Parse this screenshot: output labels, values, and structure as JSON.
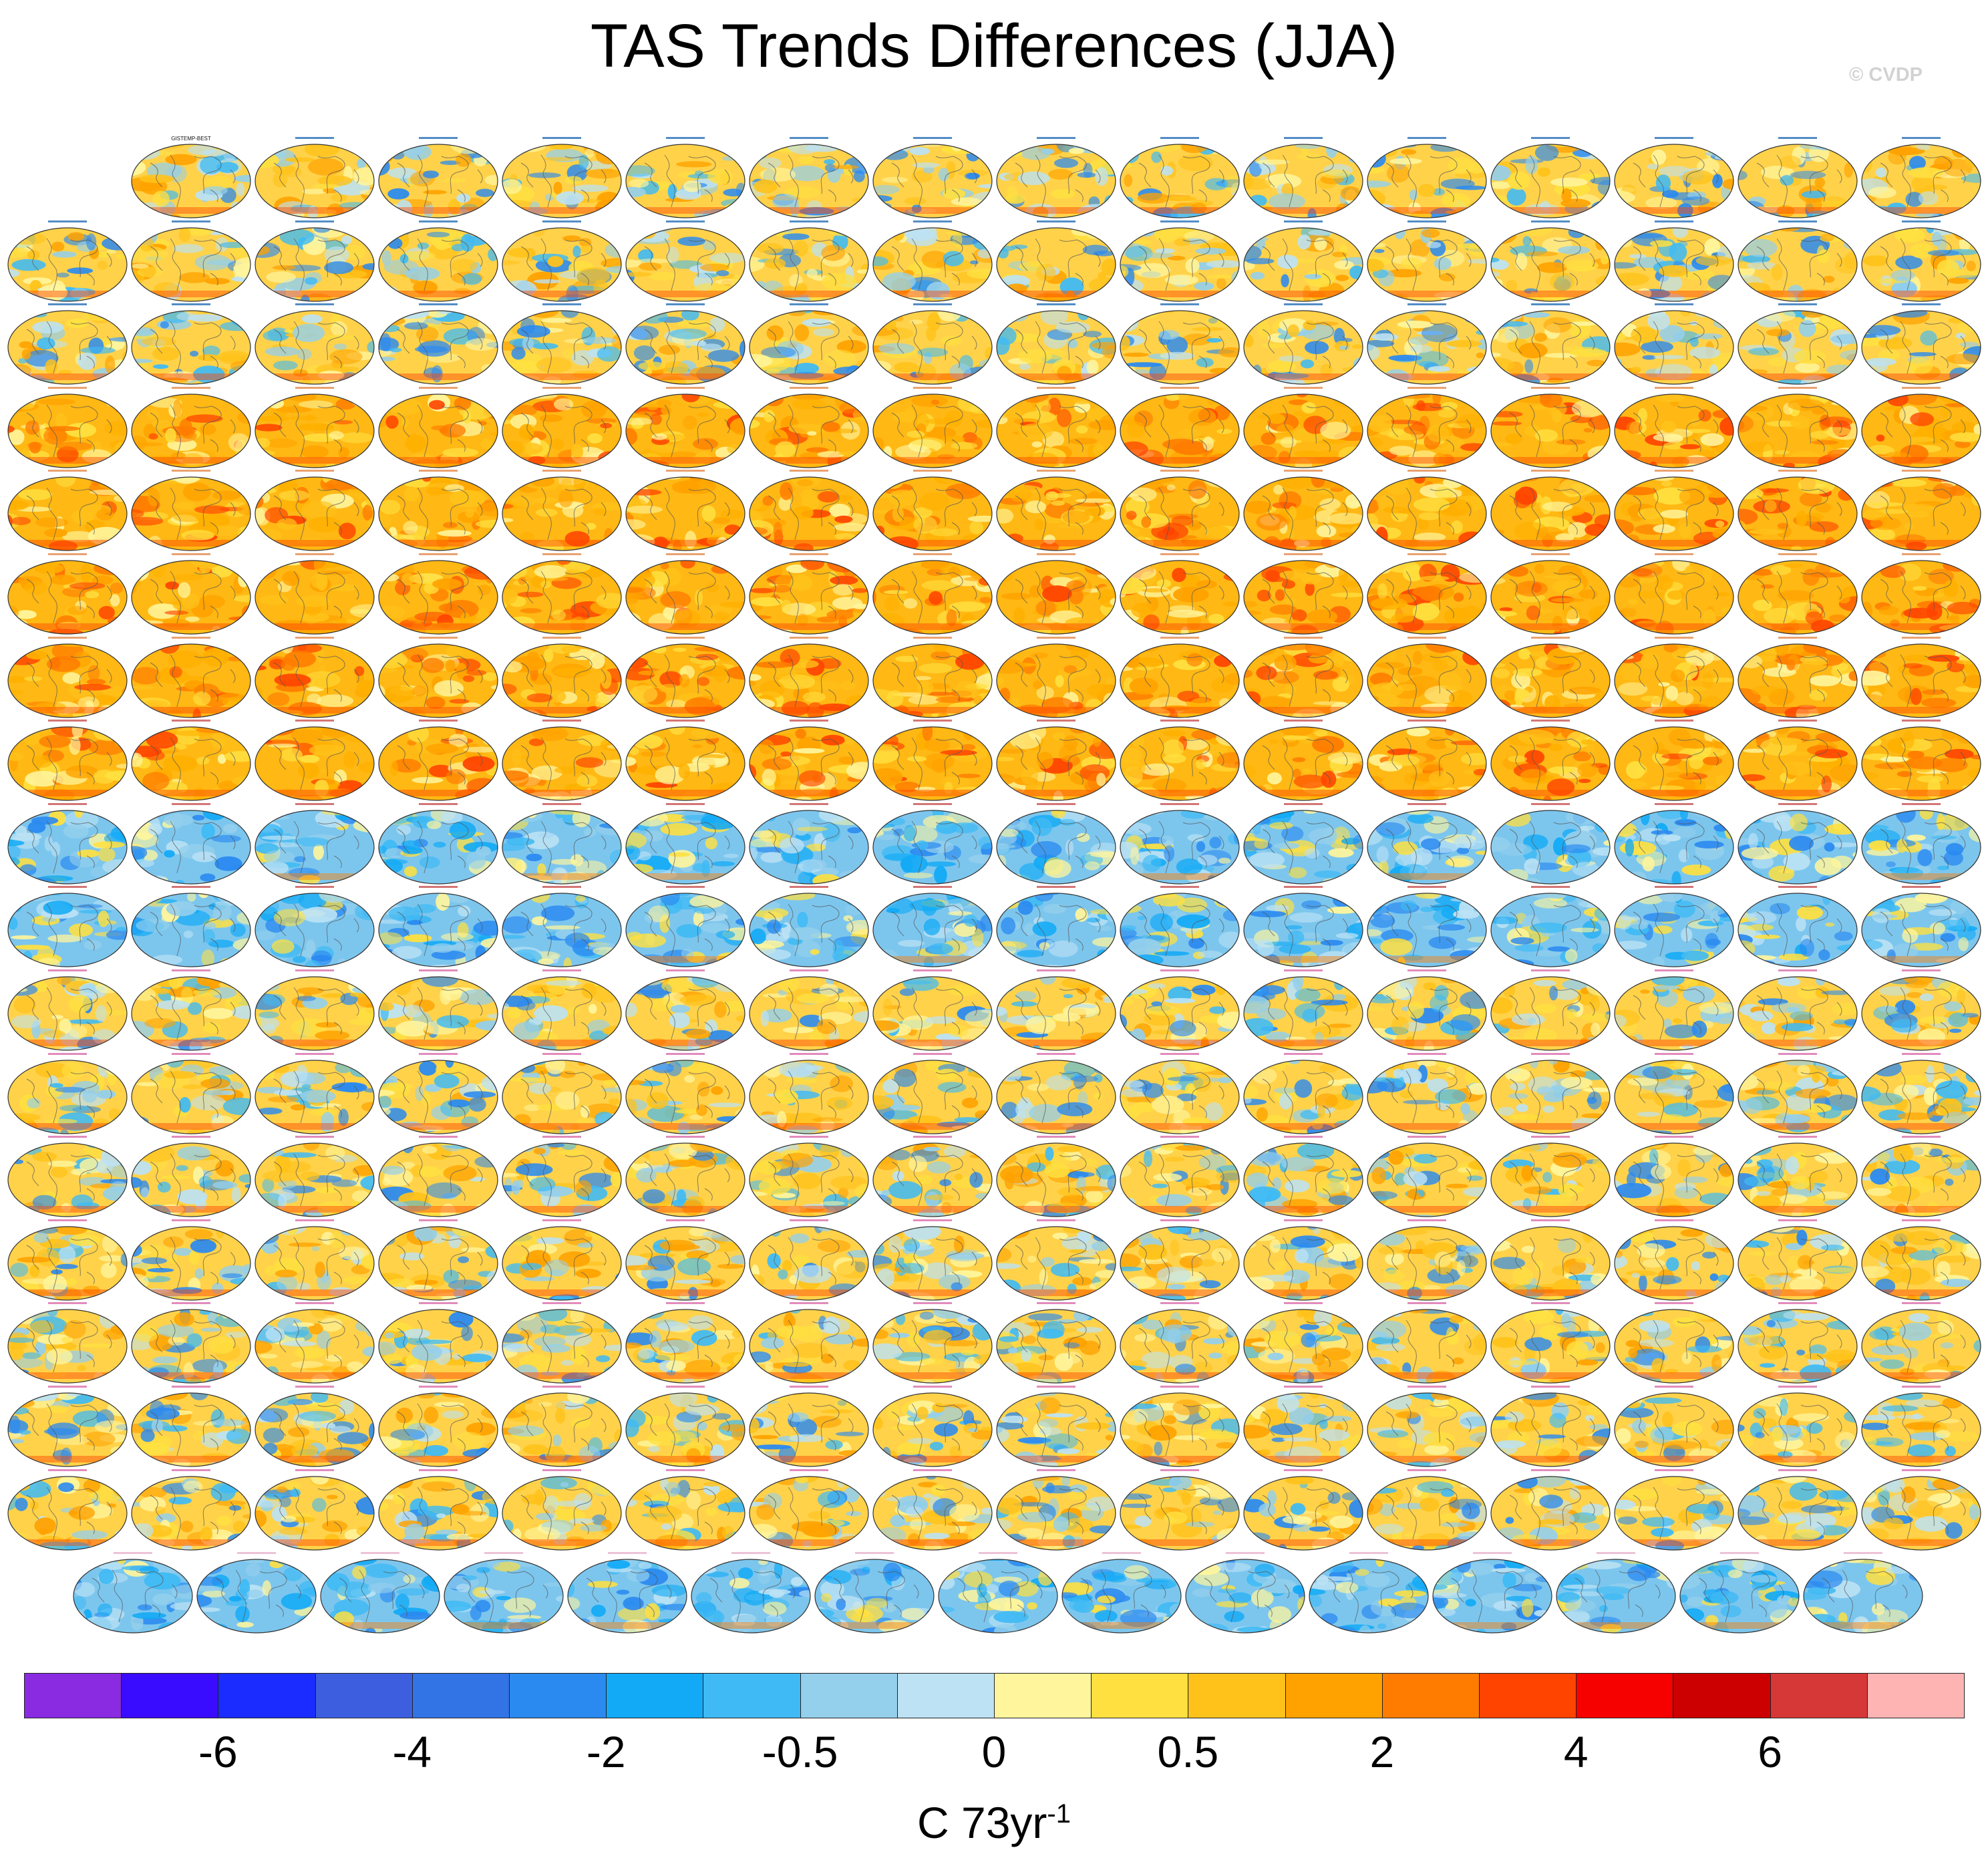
{
  "title": "TAS Trends Differences (JJA)",
  "watermark": "© CVDP",
  "panel_grid": {
    "rows": 18,
    "columns": 16,
    "panels_per_row": [
      15,
      16,
      16,
      16,
      16,
      16,
      16,
      16,
      16,
      16,
      16,
      16,
      16,
      16,
      16,
      16,
      16,
      15
    ],
    "panel_count": 286,
    "first_panel_label": "GISTEMP-BEST",
    "row_label_color": [
      "#0a5cae",
      "#0a5cae",
      "#0a5cae",
      "#e07a33",
      "#e07a33",
      "#e07a33",
      "#e07a33",
      "#c23a3a",
      "#c23a3a",
      "#c23a3a",
      "#d55aa0",
      "#d55aa0",
      "#d55aa0",
      "#d55aa0",
      "#d55aa0",
      "#d55aa0",
      "#d55aa0",
      "#e4a8c4"
    ],
    "row_tone": [
      "mixed",
      "mixed",
      "mixed",
      "warm",
      "warm",
      "warm",
      "warm",
      "warm",
      "cool",
      "cool",
      "mixed",
      "mixed",
      "mixed",
      "mixed",
      "mixed",
      "mixed",
      "mixed",
      "cool"
    ]
  },
  "colorbar": {
    "colors": [
      "#8a2be2",
      "#3a0cff",
      "#1a2cff",
      "#3e5ee0",
      "#3274e6",
      "#2b8af0",
      "#12aaf6",
      "#40baf4",
      "#94cfec",
      "#bce2f4",
      "#fff59c",
      "#ffe040",
      "#ffc21a",
      "#ffa200",
      "#ff7c00",
      "#ff4400",
      "#f70000",
      "#cc0000",
      "#d63838",
      "#ffb4b4"
    ],
    "tick_labels": [
      "-6",
      "-4",
      "-2",
      "-0.5",
      "0",
      "0.5",
      "2",
      "4",
      "6"
    ],
    "tick_boundary_index": [
      2,
      4,
      6,
      8,
      10,
      12,
      14,
      16,
      18
    ],
    "units": "C 73yr",
    "units_superscript": "-1"
  }
}
